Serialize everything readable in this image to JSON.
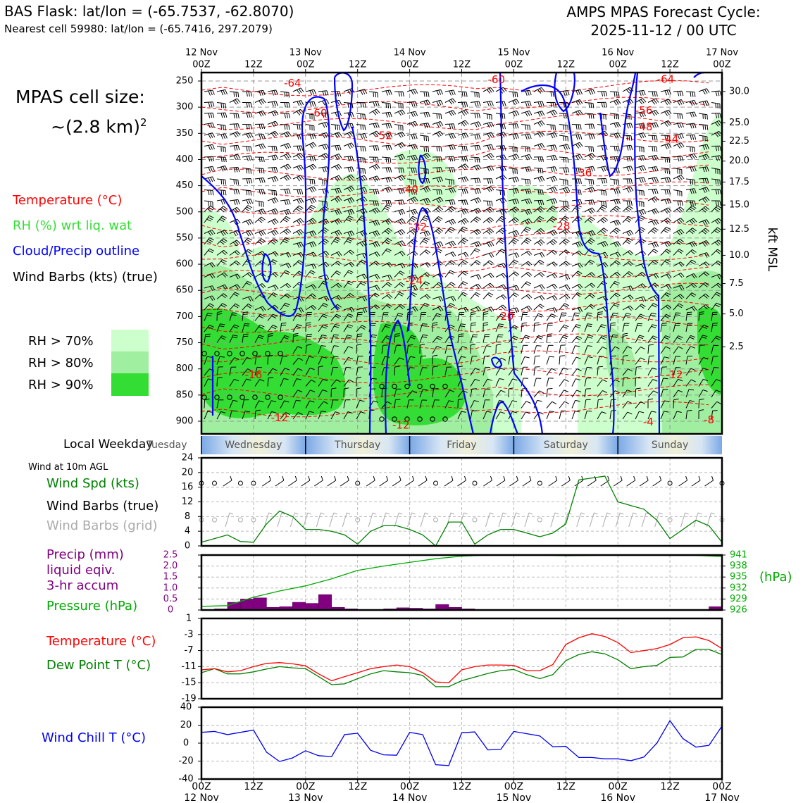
{
  "header": {
    "title_line1": "BAS Flask: lat/lon = (-65.7537, -62.8070)",
    "title_line2": "Nearest cell 59980: lat/lon = (-65.7416, 297.2079)",
    "cycle_line1": "AMPS MPAS Forecast Cycle:",
    "cycle_line2": "2025-11-12 / 00 UTC"
  },
  "cell_size": {
    "line1": "MPAS cell size:",
    "line2": "~(2.8 km)",
    "sup": "2"
  },
  "legend": {
    "temperature": "Temperature (°C)",
    "rh": "RH (%) wrt liq. wat",
    "cloud": "Cloud/Precip outline",
    "barbs": "Wind Barbs (kts) (true)",
    "rh70": "RH > 70%",
    "rh80": "RH > 80%",
    "rh90": "RH > 90%",
    "temperature_color": "#ff0000",
    "rh_color": "#33dd33",
    "cloud_color": "#0000ff",
    "rh70_color": "#ccffcc",
    "rh80_color": "#a0eea0",
    "rh90_color": "#33dd33"
  },
  "weekday": {
    "label": "Local Weekday",
    "days": [
      "Tuesday",
      "Wednesday",
      "Thursday",
      "Friday",
      "Saturday",
      "Sunday"
    ]
  },
  "wind_panel": {
    "header": "Wind at 10m AGL",
    "spd_label": "Wind Spd (kts)",
    "barbs_true_label": "Wind Barbs (true)",
    "barbs_grid_label": "Wind Barbs (grid)",
    "spd_color": "#008000",
    "grid_color": "#aaaaaa"
  },
  "precip_panel": {
    "label1": "Precip (mm)",
    "label2": "liquid eqiv.",
    "label3": "3-hr accum",
    "pressure_label": "Pressure (hPa)",
    "hpa_label": "(hPa)",
    "precip_color": "#800080",
    "pressure_color": "#00aa00"
  },
  "temp_panel": {
    "temp_label": "Temperature (°C)",
    "dew_label": "Dew Point T (°C)"
  },
  "chill_panel": {
    "label": "Wind Chill T (°C)",
    "color": "#0000ee"
  },
  "chart_data": [
    {
      "type": "contour",
      "panel": "vertical cross-section",
      "y_axis": "pressure (hPa)",
      "y_ticks": [
        "250",
        "300",
        "350",
        "400",
        "450",
        "500",
        "550",
        "600",
        "650",
        "700",
        "750",
        "800",
        "850",
        "900"
      ],
      "y2_label": "kft MSL",
      "y2_ticks": [
        "30.0",
        "25.0",
        "22.5",
        "20.0",
        "17.5",
        "15.0",
        "12.5",
        "10.0",
        "7.5",
        "5.0",
        "2.5"
      ],
      "y2_pressure": [
        270,
        330,
        365,
        403,
        443,
        487,
        533,
        583,
        637,
        695,
        758,
        822,
        892
      ],
      "top_ticks": [
        {
          "hour": 0,
          "l1": "12 Nov",
          "l2": "00Z"
        },
        {
          "hour": 12,
          "l1": "",
          "l2": "12Z"
        },
        {
          "hour": 24,
          "l1": "13 Nov",
          "l2": "00Z"
        },
        {
          "hour": 36,
          "l1": "",
          "l2": "12Z"
        },
        {
          "hour": 48,
          "l1": "14 Nov",
          "l2": "00Z"
        },
        {
          "hour": 60,
          "l1": "",
          "l2": "12Z"
        },
        {
          "hour": 72,
          "l1": "15 Nov",
          "l2": "00Z"
        },
        {
          "hour": 84,
          "l1": "",
          "l2": "12Z"
        },
        {
          "hour": 96,
          "l1": "16 Nov",
          "l2": "00Z"
        },
        {
          "hour": 108,
          "l1": "",
          "l2": "12Z"
        },
        {
          "hour": 120,
          "l1": "17 Nov",
          "l2": "00Z"
        }
      ],
      "temp_labels": [
        {
          "t": "-64",
          "h": 21,
          "p": 255
        },
        {
          "t": "-60",
          "h": 27,
          "p": 312
        },
        {
          "t": "-52",
          "h": 42,
          "p": 355
        },
        {
          "t": "-40",
          "h": 48,
          "p": 458
        },
        {
          "t": "-32",
          "h": 50,
          "p": 530
        },
        {
          "t": "-24",
          "h": 49,
          "p": 632
        },
        {
          "t": "-20",
          "h": 70,
          "p": 700
        },
        {
          "t": "-16",
          "h": 12,
          "p": 812
        },
        {
          "t": "-12",
          "h": 18,
          "p": 894
        },
        {
          "t": "-12",
          "h": 46,
          "p": 908
        },
        {
          "t": "-60",
          "h": 68,
          "p": 248
        },
        {
          "t": "-56",
          "h": 102,
          "p": 307
        },
        {
          "t": "-48",
          "h": 102,
          "p": 338
        },
        {
          "t": "-44",
          "h": 108,
          "p": 362
        },
        {
          "t": "-36",
          "h": 88,
          "p": 426
        },
        {
          "t": "-28",
          "h": 83,
          "p": 528
        },
        {
          "t": "-12",
          "h": 109,
          "p": 812
        },
        {
          "t": "-4",
          "h": 103,
          "p": 902
        },
        {
          "t": "-64",
          "h": 107,
          "p": 247
        },
        {
          "t": "-8",
          "h": 117,
          "p": 898
        }
      ]
    },
    {
      "type": "line",
      "panel": "10m wind speed",
      "y_ticks": [
        0,
        4,
        8,
        12,
        16,
        20,
        24
      ],
      "ylim": [
        0,
        24
      ],
      "x_hours": [
        0,
        3,
        6,
        9,
        12,
        15,
        18,
        21,
        24,
        27,
        30,
        33,
        36,
        39,
        42,
        45,
        48,
        51,
        54,
        57,
        60,
        63,
        66,
        69,
        72,
        75,
        78,
        81,
        84,
        87,
        90,
        93,
        96,
        99,
        102,
        105,
        108,
        111,
        114,
        117,
        120
      ],
      "wind_speed_kts": [
        1,
        2,
        3,
        1.2,
        1,
        6,
        9.5,
        8,
        4.5,
        4.5,
        4,
        3,
        0.5,
        4,
        5.5,
        5.5,
        4.5,
        3,
        0,
        6.5,
        6.5,
        0.5,
        3,
        4.5,
        4.5,
        3.5,
        2.5,
        3.5,
        6,
        18,
        18.5,
        19,
        12,
        11,
        10,
        7,
        2,
        4.5,
        7,
        5.5,
        1
      ]
    },
    {
      "type": "bar+line",
      "panel": "precip and pressure",
      "precip_ticks": [
        "0",
        "0.5",
        "1.0",
        "1.5",
        "2.0",
        "2.5"
      ],
      "pressure_ticks": [
        "926",
        "929",
        "932",
        "935",
        "938",
        "941"
      ],
      "precip_ylim": [
        0,
        2.5
      ],
      "pressure_ylim": [
        926,
        941
      ],
      "bars_start_hour": [
        3,
        6,
        9,
        12,
        15,
        18,
        21,
        24,
        27,
        30,
        33,
        42,
        45,
        48,
        51,
        54,
        57,
        60,
        63,
        66,
        117
      ],
      "precip_mm": [
        0.05,
        0.35,
        0.5,
        0.55,
        0.12,
        0.15,
        0.35,
        0.3,
        0.7,
        0.12,
        0.05,
        0.05,
        0.1,
        0.08,
        0.05,
        0.25,
        0.12,
        0.05,
        0.02,
        0.02,
        0.15
      ],
      "pressure_x_hours": [
        0,
        6,
        12,
        18,
        24,
        30,
        36,
        42,
        48,
        54,
        60,
        66,
        72,
        78,
        84,
        90,
        96,
        102,
        108,
        114,
        120
      ],
      "pressure_hpa": [
        927,
        927.2,
        929.5,
        931.2,
        932.6,
        934.5,
        936.8,
        938,
        939,
        940,
        940.7,
        941,
        941,
        941,
        940.8,
        940.9,
        941,
        941,
        940.9,
        940.9,
        940.6
      ]
    },
    {
      "type": "line",
      "panel": "temperature and dew point",
      "y_ticks": [
        "-19",
        "-15",
        "-11",
        "-7",
        "-3",
        "1"
      ],
      "ylim": [
        -19,
        1
      ],
      "x_hours": [
        0,
        3,
        6,
        9,
        12,
        15,
        18,
        21,
        24,
        27,
        30,
        33,
        36,
        39,
        42,
        45,
        48,
        51,
        54,
        57,
        60,
        63,
        66,
        69,
        72,
        75,
        78,
        81,
        84,
        87,
        90,
        93,
        96,
        99,
        102,
        105,
        108,
        111,
        114,
        117,
        120
      ],
      "temperature_c": [
        -11.8,
        -11.5,
        -12.3,
        -12,
        -11,
        -10.2,
        -10,
        -10.3,
        -10.8,
        -12.8,
        -14.5,
        -13.5,
        -12.5,
        -11.5,
        -11,
        -10.6,
        -11,
        -12.5,
        -14.8,
        -15,
        -11.8,
        -11,
        -10.6,
        -10.6,
        -10.7,
        -12,
        -12,
        -10.5,
        -5.5,
        -3.8,
        -2.8,
        -3.5,
        -5,
        -7.5,
        -7,
        -6.5,
        -5.5,
        -3.8,
        -3.6,
        -4.5,
        -6.5
      ],
      "dewpoint_c": [
        -12.5,
        -11.5,
        -12.8,
        -12.8,
        -12.3,
        -11.6,
        -11,
        -11.3,
        -11.5,
        -13.5,
        -15.5,
        -15.3,
        -14,
        -12.8,
        -12,
        -12.3,
        -12.5,
        -13.2,
        -16,
        -16,
        -14.5,
        -13.6,
        -12.7,
        -12,
        -11.7,
        -13,
        -14,
        -13,
        -9.5,
        -8,
        -7.3,
        -7.8,
        -9.3,
        -11.5,
        -11,
        -10.7,
        -8.7,
        -8.6,
        -6.7,
        -6.7,
        -8
      ]
    },
    {
      "type": "line",
      "panel": "wind chill",
      "y_ticks": [
        "-40",
        "-20",
        "0",
        "20",
        "40"
      ],
      "ylim": [
        -40,
        40
      ],
      "x_hours": [
        0,
        3,
        6,
        9,
        12,
        15,
        18,
        21,
        24,
        27,
        30,
        33,
        36,
        39,
        42,
        45,
        48,
        51,
        54,
        57,
        60,
        63,
        66,
        69,
        72,
        75,
        78,
        81,
        84,
        87,
        90,
        93,
        96,
        99,
        102,
        105,
        108,
        111,
        114,
        117,
        120
      ],
      "windchill_c": [
        12,
        13,
        9.5,
        12,
        14.5,
        -10,
        -20.5,
        -16.5,
        -8.5,
        -14,
        -15,
        9.5,
        11,
        -8,
        -13,
        -13.5,
        12,
        9.5,
        -24,
        -25,
        11.5,
        12.5,
        -7.5,
        -7,
        13,
        10.5,
        8,
        -4,
        -3.5,
        -16,
        -16,
        -17.5,
        -17.5,
        -19.5,
        -15.5,
        0,
        25,
        5,
        -4.5,
        -2.5,
        19
      ]
    }
  ],
  "bottom_axis": [
    {
      "hour": 0,
      "l1": "00Z",
      "l2": "12 Nov"
    },
    {
      "hour": 12,
      "l1": "12Z",
      "l2": ""
    },
    {
      "hour": 24,
      "l1": "00Z",
      "l2": "13 Nov"
    },
    {
      "hour": 36,
      "l1": "12Z",
      "l2": ""
    },
    {
      "hour": 48,
      "l1": "00Z",
      "l2": "14 Nov"
    },
    {
      "hour": 60,
      "l1": "12Z",
      "l2": ""
    },
    {
      "hour": 72,
      "l1": "00Z",
      "l2": "15 Nov"
    },
    {
      "hour": 84,
      "l1": "12Z",
      "l2": ""
    },
    {
      "hour": 96,
      "l1": "00Z",
      "l2": "16 Nov"
    },
    {
      "hour": 108,
      "l1": "12Z",
      "l2": ""
    },
    {
      "hour": 120,
      "l1": "00Z",
      "l2": "17 Nov"
    }
  ]
}
